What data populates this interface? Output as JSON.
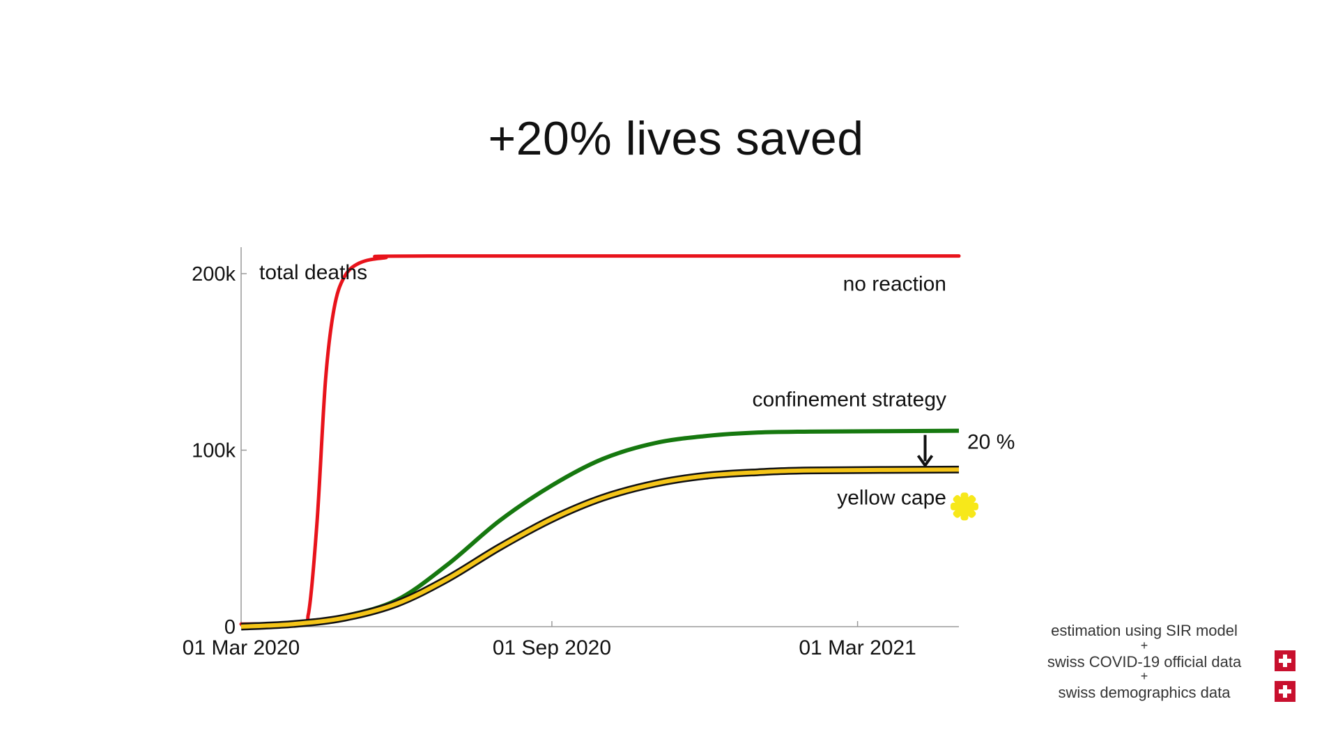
{
  "title": "+20% lives saved",
  "chart_data": {
    "type": "line",
    "ylabel": "total deaths",
    "ylim": [
      0,
      215000
    ],
    "yticks": [
      {
        "value": 0,
        "label": "0"
      },
      {
        "value": 100000,
        "label": "100k"
      },
      {
        "value": 200000,
        "label": "200k"
      }
    ],
    "xlim": [
      "2020-03-01",
      "2021-04-30"
    ],
    "xticks": [
      {
        "value": "2020-03-01",
        "label": "01 Mar 2020"
      },
      {
        "value": "2020-09-01",
        "label": "01 Sep 2020"
      },
      {
        "value": "2021-03-01",
        "label": "01 Mar 2021"
      }
    ],
    "grid": false,
    "series": [
      {
        "name": "no reaction",
        "color": "#e8131b",
        "points": [
          [
            "2020-03-01",
            1500
          ],
          [
            "2020-04-05",
            2000
          ],
          [
            "2020-04-10",
            8000
          ],
          [
            "2020-04-15",
            60000
          ],
          [
            "2020-04-20",
            140000
          ],
          [
            "2020-04-25",
            180000
          ],
          [
            "2020-05-01",
            198000
          ],
          [
            "2020-05-10",
            206000
          ],
          [
            "2020-05-25",
            209000
          ],
          [
            "2020-06-20",
            210000
          ],
          [
            "2021-04-30",
            210000
          ]
        ]
      },
      {
        "name": "confinement strategy",
        "color": "#16780f",
        "points": [
          [
            "2020-03-01",
            1000
          ],
          [
            "2020-04-01",
            2000
          ],
          [
            "2020-05-01",
            6000
          ],
          [
            "2020-06-01",
            15000
          ],
          [
            "2020-07-01",
            35000
          ],
          [
            "2020-08-01",
            60000
          ],
          [
            "2020-09-01",
            80000
          ],
          [
            "2020-10-01",
            95000
          ],
          [
            "2020-11-01",
            104000
          ],
          [
            "2020-12-01",
            108000
          ],
          [
            "2021-01-01",
            110000
          ],
          [
            "2021-02-01",
            110500
          ],
          [
            "2021-04-30",
            111000
          ]
        ]
      },
      {
        "name": "yellow cape",
        "color": "#f5c518",
        "outline": "#111111",
        "points": [
          [
            "2020-03-01",
            0
          ],
          [
            "2020-04-01",
            1500
          ],
          [
            "2020-05-01",
            5000
          ],
          [
            "2020-06-01",
            13000
          ],
          [
            "2020-07-01",
            27000
          ],
          [
            "2020-08-01",
            45000
          ],
          [
            "2020-09-01",
            61000
          ],
          [
            "2020-10-01",
            73000
          ],
          [
            "2020-11-01",
            81000
          ],
          [
            "2020-12-01",
            85500
          ],
          [
            "2021-01-01",
            87500
          ],
          [
            "2021-02-01",
            88500
          ],
          [
            "2021-04-30",
            89000
          ]
        ]
      }
    ],
    "annotations": [
      {
        "text": "20 %",
        "type": "arrow-down",
        "x": "2021-04-10"
      }
    ]
  },
  "sources": {
    "line1": "estimation using SIR model",
    "plus1": "+",
    "line2": "swiss COVID-19 official data",
    "plus2": "+",
    "line3": "swiss demographics data"
  },
  "colors": {
    "flag_red": "#c8102e",
    "marker_yellow": "#f7e81a"
  }
}
